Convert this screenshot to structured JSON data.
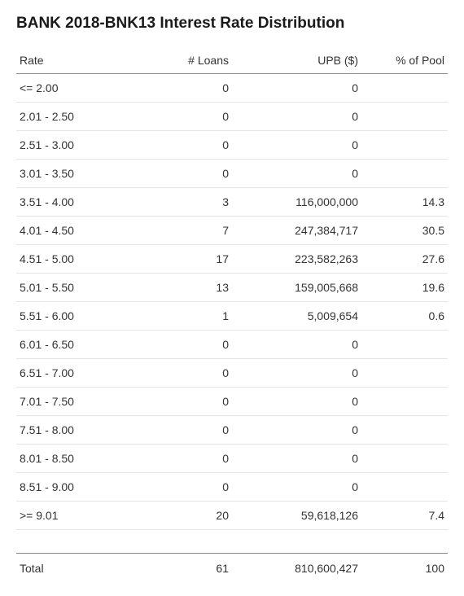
{
  "title": "BANK 2018-BNK13 Interest Rate Distribution",
  "columns": [
    "Rate",
    "# Loans",
    "UPB ($)",
    "% of Pool"
  ],
  "rows": [
    {
      "rate": "<= 2.00",
      "loans": "0",
      "upb": "0",
      "pct": ""
    },
    {
      "rate": "2.01 - 2.50",
      "loans": "0",
      "upb": "0",
      "pct": ""
    },
    {
      "rate": "2.51 - 3.00",
      "loans": "0",
      "upb": "0",
      "pct": ""
    },
    {
      "rate": "3.01 - 3.50",
      "loans": "0",
      "upb": "0",
      "pct": ""
    },
    {
      "rate": "3.51 - 4.00",
      "loans": "3",
      "upb": "116,000,000",
      "pct": "14.3"
    },
    {
      "rate": "4.01 - 4.50",
      "loans": "7",
      "upb": "247,384,717",
      "pct": "30.5"
    },
    {
      "rate": "4.51 - 5.00",
      "loans": "17",
      "upb": "223,582,263",
      "pct": "27.6"
    },
    {
      "rate": "5.01 - 5.50",
      "loans": "13",
      "upb": "159,005,668",
      "pct": "19.6"
    },
    {
      "rate": "5.51 - 6.00",
      "loans": "1",
      "upb": "5,009,654",
      "pct": "0.6"
    },
    {
      "rate": "6.01 - 6.50",
      "loans": "0",
      "upb": "0",
      "pct": ""
    },
    {
      "rate": "6.51 - 7.00",
      "loans": "0",
      "upb": "0",
      "pct": ""
    },
    {
      "rate": "7.01 - 7.50",
      "loans": "0",
      "upb": "0",
      "pct": ""
    },
    {
      "rate": "7.51 - 8.00",
      "loans": "0",
      "upb": "0",
      "pct": ""
    },
    {
      "rate": "8.01 - 8.50",
      "loans": "0",
      "upb": "0",
      "pct": ""
    },
    {
      "rate": "8.51 - 9.00",
      "loans": "0",
      "upb": "0",
      "pct": ""
    },
    {
      "rate": ">= 9.01",
      "loans": "20",
      "upb": "59,618,126",
      "pct": "7.4"
    }
  ],
  "total": {
    "label": "Total",
    "loans": "61",
    "upb": "810,600,427",
    "pct": "100"
  },
  "style": {
    "type": "table",
    "background_color": "#ffffff",
    "text_color": "#333333",
    "title_color": "#1a1a1a",
    "header_border_color": "#888888",
    "row_border_color": "#e5e5e5",
    "title_fontsize": 19,
    "body_fontsize": 14,
    "col_widths_pct": [
      30,
      20,
      30,
      20
    ],
    "col_align": [
      "left",
      "right",
      "right",
      "right"
    ]
  }
}
